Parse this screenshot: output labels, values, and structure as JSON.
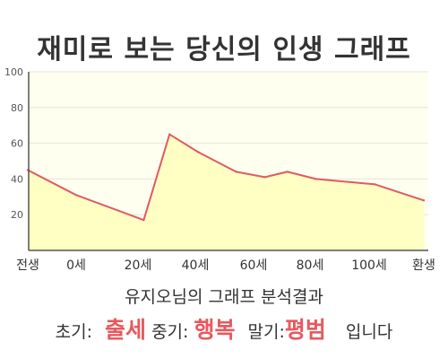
{
  "title": "재미로 보는 당신의 인생 그래프",
  "chart_data": {
    "type": "area",
    "x_ticks": [
      "전생",
      "0세",
      "20세",
      "40세",
      "60세",
      "80세",
      "100세",
      "환생"
    ],
    "y_ticks": [
      "20",
      "40",
      "60",
      "80",
      "100"
    ],
    "ylim": [
      0,
      100
    ],
    "points": [
      {
        "x": -24,
        "y": 45
      },
      {
        "x": 0,
        "y": 31
      },
      {
        "x": 22,
        "y": 17
      },
      {
        "x": 31,
        "y": 65
      },
      {
        "x": 41,
        "y": 55
      },
      {
        "x": 54,
        "y": 44
      },
      {
        "x": 64,
        "y": 41
      },
      {
        "x": 72,
        "y": 44
      },
      {
        "x": 82,
        "y": 40
      },
      {
        "x": 103,
        "y": 37
      },
      {
        "x": 128,
        "y": 28
      }
    ],
    "line_color": "#e05a63",
    "fill_color": "#ffffc4",
    "grid": true
  },
  "summary": "유지오님의 그래프 분석결과",
  "result": {
    "early_label": "초기:",
    "early_value": "출세",
    "mid_label": "중기:",
    "mid_value": "행복",
    "late_label": "말기:",
    "late_value": "평범",
    "ending": "입니다"
  }
}
